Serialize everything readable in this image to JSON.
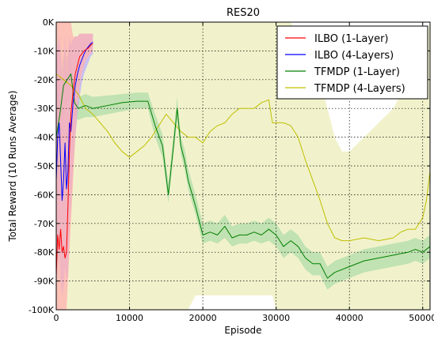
{
  "chart_data": {
    "type": "line",
    "title": "RES20",
    "xlabel": "Episode",
    "ylabel": "Total Reward (10 Runs Average)",
    "xlim": [
      0,
      51000
    ],
    "ylim": [
      -100000,
      0
    ],
    "x_ticks": [
      0,
      10000,
      20000,
      30000,
      40000,
      50000
    ],
    "x_tick_labels": [
      "0",
      "10000",
      "20000",
      "30000",
      "40000",
      "50000"
    ],
    "y_ticks": [
      0,
      -10000,
      -20000,
      -30000,
      -40000,
      -50000,
      -60000,
      -70000,
      -80000,
      -90000,
      -100000
    ],
    "y_tick_labels": [
      "0K",
      "-10K",
      "-20K",
      "-30K",
      "-40K",
      "-50K",
      "-60K",
      "-70K",
      "-80K",
      "-90K",
      "-100K"
    ],
    "grid": true,
    "legend_position": "top-right",
    "series": [
      {
        "name": "ILBO (1-Layer)",
        "color": "#ff0000",
        "band_color": "#ffb0b0",
        "x": [
          0,
          200,
          400,
          600,
          800,
          1000,
          1200,
          1400,
          1600,
          1800,
          2000,
          2300,
          2600,
          2900,
          3200,
          3500,
          3800,
          4100,
          4400,
          4700,
          5000
        ],
        "y": [
          -88000,
          -74000,
          -79000,
          -72000,
          -80000,
          -78000,
          -82000,
          -80000,
          -64000,
          -45000,
          -32000,
          -24000,
          -18000,
          -15000,
          -12000,
          -11000,
          -10000,
          -9500,
          -9000,
          -8000,
          -7500
        ],
        "band_lower": [
          -100000,
          -100000,
          -100000,
          -100000,
          -100000,
          -100000,
          -100000,
          -100000,
          -90000,
          -80000,
          -70000,
          -55000,
          -40000,
          -30000,
          -22000,
          -18000,
          -15000,
          -13000,
          -12000,
          -11000,
          -10000
        ],
        "band_upper": [
          0,
          0,
          0,
          0,
          0,
          0,
          0,
          0,
          0,
          0,
          0,
          -5000,
          -5000,
          -5000,
          -4000,
          -4000,
          -4000,
          -4000,
          -4000,
          -4000,
          -4000
        ]
      },
      {
        "name": "ILBO (4-Layers)",
        "color": "#0000ff",
        "band_color": "#b8b0ff",
        "x": [
          0,
          200,
          400,
          600,
          800,
          1000,
          1200,
          1400,
          1600,
          1800,
          2000,
          2300,
          2600,
          2900,
          3200,
          3500,
          3800,
          4100,
          4400,
          4700,
          5000
        ],
        "y": [
          -55000,
          -40000,
          -35000,
          -48000,
          -62000,
          -55000,
          -42000,
          -58000,
          -52000,
          -35000,
          -38000,
          -28000,
          -22000,
          -18000,
          -15000,
          -13000,
          -11000,
          -9500,
          -8500,
          -7500,
          -7000
        ],
        "band_lower": [
          -95000,
          -85000,
          -80000,
          -90000,
          -95000,
          -92000,
          -85000,
          -90000,
          -88000,
          -70000,
          -65000,
          -50000,
          -40000,
          -32000,
          -26000,
          -21000,
          -18000,
          -16000,
          -14000,
          -12000,
          -11000
        ],
        "band_upper": [
          -15000,
          -8000,
          -5000,
          -10000,
          -20000,
          -15000,
          -5000,
          -18000,
          -12000,
          -5000,
          -8000,
          -6000,
          -5000,
          -5000,
          -4000,
          -4000,
          -4000,
          -4000,
          -4000,
          -4000,
          -4000
        ]
      },
      {
        "name": "TFMDP (1-Layer)",
        "color": "#008000",
        "band_color": "#b0dcaa",
        "x": [
          0,
          500,
          1000,
          1500,
          2000,
          2500,
          3000,
          4000,
          5000,
          7000,
          9000,
          11000,
          12500,
          13500,
          14500,
          15300,
          16000,
          16500,
          17000,
          17500,
          18000,
          19000,
          20000,
          21000,
          22000,
          23000,
          24000,
          25000,
          26000,
          27000,
          28000,
          29000,
          30000,
          31000,
          32000,
          33000,
          34000,
          35000,
          36000,
          37000,
          38000,
          40000,
          42000,
          44000,
          46000,
          48000,
          49000,
          50000,
          51000
        ],
        "y": [
          -40000,
          -32000,
          -22000,
          -20000,
          -18000,
          -28000,
          -30000,
          -29000,
          -30000,
          -29000,
          -28000,
          -27500,
          -27500,
          -36000,
          -43000,
          -60000,
          -43000,
          -30000,
          -43000,
          -48000,
          -55000,
          -64000,
          -74000,
          -73000,
          -74000,
          -71000,
          -75000,
          -74000,
          -74000,
          -73000,
          -74000,
          -72000,
          -74000,
          -78000,
          -76000,
          -78000,
          -82000,
          -84000,
          -84000,
          -89000,
          -87000,
          -85000,
          -83000,
          -82000,
          -81000,
          -80000,
          -79000,
          -80000,
          -78000
        ],
        "band_lower": [
          -60000,
          -45000,
          -32000,
          -28000,
          -26000,
          -33000,
          -34000,
          -33000,
          -33000,
          -32000,
          -31000,
          -30000,
          -30000,
          -40000,
          -47000,
          -63000,
          -46000,
          -34000,
          -46000,
          -51000,
          -58000,
          -67000,
          -77000,
          -76000,
          -77000,
          -75000,
          -78000,
          -77000,
          -77000,
          -76000,
          -77000,
          -76000,
          -78000,
          -82000,
          -80000,
          -82000,
          -86000,
          -88000,
          -88000,
          -93000,
          -91000,
          -89000,
          -87000,
          -86000,
          -85000,
          -84000,
          -83000,
          -84000,
          -82000
        ],
        "band_upper": [
          -20000,
          -19000,
          -12000,
          -12000,
          -10000,
          -23000,
          -26000,
          -25000,
          -26000,
          -25500,
          -25000,
          -24500,
          -24500,
          -32000,
          -39000,
          -56000,
          -39000,
          -26000,
          -40000,
          -44000,
          -51000,
          -60000,
          -70000,
          -69000,
          -70000,
          -67000,
          -71000,
          -70000,
          -70000,
          -69000,
          -70000,
          -68000,
          -70000,
          -74000,
          -72000,
          -74000,
          -78000,
          -80000,
          -80000,
          -85000,
          -83000,
          -81000,
          -79000,
          -78000,
          -77000,
          -76000,
          -75000,
          -76000,
          -74000
        ]
      },
      {
        "name": "TFMDP (4-Layers)",
        "color": "#bfbf00",
        "band_color": "#ecedb9",
        "x": [
          0,
          1000,
          2000,
          3000,
          4000,
          5000,
          6000,
          7000,
          8000,
          9000,
          10000,
          11000,
          12000,
          13000,
          14000,
          15000,
          16000,
          17000,
          18000,
          19000,
          20000,
          21000,
          22000,
          23000,
          24000,
          25000,
          26000,
          27000,
          28000,
          29000,
          29500,
          30000,
          31000,
          32000,
          33000,
          34000,
          35000,
          36000,
          37000,
          38000,
          39000,
          40000,
          42000,
          44000,
          46000,
          47000,
          48000,
          49000,
          50000,
          50500,
          51000
        ],
        "y": [
          -18000,
          -20000,
          -22000,
          -25000,
          -30000,
          -32000,
          -35000,
          -38000,
          -42000,
          -45000,
          -47000,
          -45000,
          -43000,
          -40000,
          -36000,
          -32000,
          -35000,
          -38000,
          -40000,
          -40000,
          -42000,
          -38000,
          -36000,
          -35000,
          -32000,
          -30000,
          -30000,
          -30000,
          -28000,
          -27000,
          -35000,
          -35000,
          -35000,
          -36000,
          -40000,
          -48000,
          -55000,
          -62000,
          -70000,
          -75000,
          -76000,
          -76000,
          -75000,
          -76000,
          -75000,
          -73000,
          -72000,
          -72000,
          -68000,
          -62000,
          -52000
        ],
        "band_lower": [
          -100000,
          -100000,
          -100000,
          -100000,
          -100000,
          -100000,
          -100000,
          -100000,
          -100000,
          -100000,
          -100000,
          -100000,
          -100000,
          -100000,
          -100000,
          -100000,
          -100000,
          -100000,
          -100000,
          -95000,
          -95000,
          -95000,
          -95000,
          -95000,
          -95000,
          -95000,
          -95000,
          -95000,
          -95000,
          -95000,
          -95000,
          -100000,
          -100000,
          -100000,
          -100000,
          -100000,
          -100000,
          -100000,
          -100000,
          -100000,
          -100000,
          -100000,
          -100000,
          -100000,
          -100000,
          -100000,
          -100000,
          -100000,
          -100000,
          -100000,
          -100000
        ],
        "band_upper": [
          0,
          0,
          0,
          0,
          0,
          0,
          0,
          0,
          0,
          0,
          0,
          0,
          0,
          0,
          0,
          0,
          0,
          0,
          0,
          0,
          0,
          0,
          0,
          0,
          0,
          0,
          0,
          0,
          0,
          0,
          0,
          0,
          0,
          0,
          -5000,
          -10000,
          -15000,
          -20000,
          -30000,
          -40000,
          -45000,
          -45000,
          -40000,
          -35000,
          -30000,
          -25000,
          -20000,
          -15000,
          -10000,
          -5000,
          0
        ]
      }
    ]
  }
}
